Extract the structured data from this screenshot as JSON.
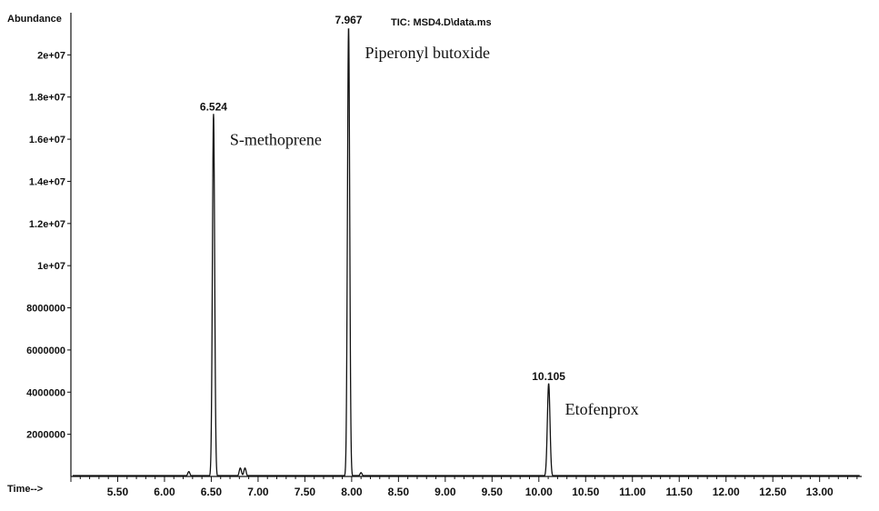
{
  "chart_data": {
    "type": "line",
    "title": "TIC: MSD4.D\\data.ms",
    "ylabel": "Abundance",
    "xlabel": "Time-->",
    "xlim": [
      5.0,
      13.45
    ],
    "ylim": [
      0,
      22000000
    ],
    "x_ticks": [
      "5.50",
      "6.00",
      "6.50",
      "7.00",
      "7.50",
      "8.00",
      "8.50",
      "9.00",
      "9.50",
      "10.00",
      "10.50",
      "11.00",
      "11.50",
      "12.00",
      "12.50",
      "13.00"
    ],
    "y_ticks": [
      {
        "value": 2000000,
        "label": "2000000"
      },
      {
        "value": 4000000,
        "label": "4000000"
      },
      {
        "value": 6000000,
        "label": "6000000"
      },
      {
        "value": 8000000,
        "label": "8000000"
      },
      {
        "value": 10000000,
        "label": "1e+07"
      },
      {
        "value": 12000000,
        "label": "1.2e+07"
      },
      {
        "value": 14000000,
        "label": "1.4e+07"
      },
      {
        "value": 16000000,
        "label": "1.6e+07"
      },
      {
        "value": 18000000,
        "label": "1.8e+07"
      },
      {
        "value": 20000000,
        "label": "2e+07"
      }
    ],
    "peaks": [
      {
        "rt": 6.524,
        "label": "6.524",
        "abundance": 17200000,
        "width": 0.03,
        "compound": "S-methoprene"
      },
      {
        "rt": 7.967,
        "label": "7.967",
        "abundance": 21300000,
        "width": 0.03,
        "compound": "Piperonyl butoxide"
      },
      {
        "rt": 10.105,
        "label": "10.105",
        "abundance": 4400000,
        "width": 0.035,
        "compound": "Etofenprox"
      }
    ],
    "minor_peaks": [
      {
        "rt": 6.26,
        "abundance": 230000
      },
      {
        "rt": 6.81,
        "abundance": 400000
      },
      {
        "rt": 6.86,
        "abundance": 400000
      },
      {
        "rt": 8.1,
        "abundance": 180000
      }
    ],
    "grid": false,
    "line_color": "#111111"
  }
}
